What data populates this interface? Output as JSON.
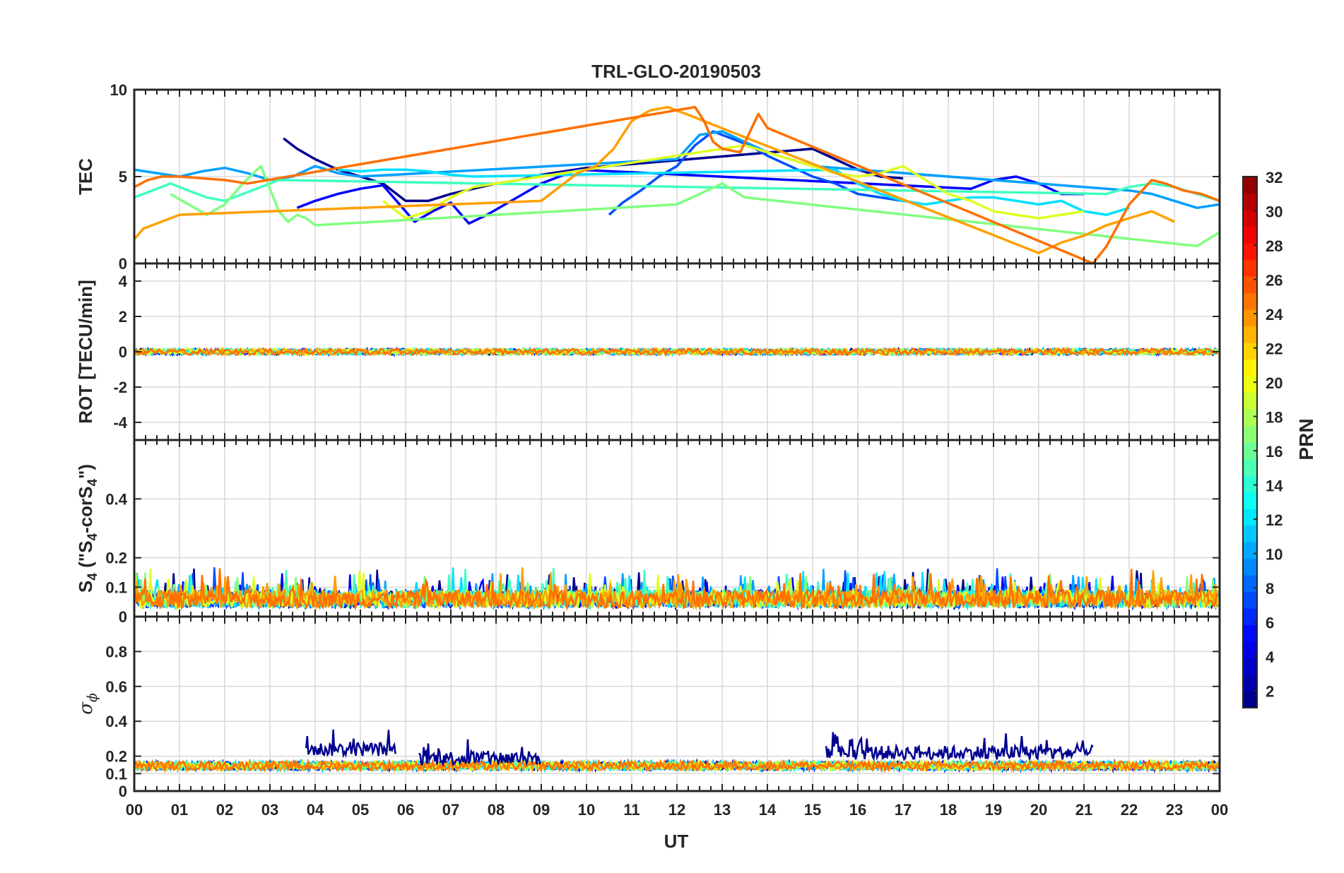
{
  "chart_data": {
    "type": "line",
    "title": "TRL-GLO-20190503",
    "xlabel": "UT",
    "x_ticks": [
      "00",
      "01",
      "02",
      "03",
      "04",
      "05",
      "06",
      "07",
      "08",
      "09",
      "10",
      "11",
      "12",
      "13",
      "14",
      "15",
      "16",
      "17",
      "18",
      "19",
      "20",
      "21",
      "22",
      "23",
      "00"
    ],
    "xlim": [
      0,
      24
    ],
    "grid": true,
    "panels": [
      {
        "id": "tec",
        "ylabel": "TEC",
        "ylim": [
          0,
          10
        ],
        "yticks": [
          0,
          5,
          10
        ],
        "ytick_labels": [
          "0",
          "5",
          "10"
        ],
        "series": [
          {
            "prn": 2,
            "color": "#00008f",
            "x": [
              3.3,
              3.6,
              4.0,
              4.5,
              5.0,
              5.5,
              6.0,
              6.5,
              7.0,
              7.5,
              8.0,
              8.5,
              9.0,
              9.5,
              10.0,
              15.0,
              15.5,
              16.0,
              16.5,
              17.0
            ],
            "y": [
              7.2,
              6.6,
              6.0,
              5.4,
              5.0,
              4.6,
              3.6,
              3.6,
              4.0,
              4.3,
              4.6,
              4.8,
              5.1,
              5.3,
              5.5,
              6.6,
              6.0,
              5.4,
              5.0,
              4.9
            ]
          },
          {
            "prn": 4,
            "color": "#0000ff",
            "x": [
              3.6,
              4.0,
              4.5,
              5.0,
              5.5,
              6.2,
              6.6,
              7.0,
              7.4,
              7.8,
              8.2,
              8.6,
              9.0,
              9.4,
              9.8,
              18.5,
              19.0,
              19.5,
              20.0,
              20.5,
              21.0
            ],
            "y": [
              3.2,
              3.6,
              4.0,
              4.3,
              4.5,
              2.4,
              3.0,
              3.5,
              2.3,
              2.8,
              3.4,
              4.0,
              4.6,
              5.0,
              5.4,
              4.3,
              4.8,
              5.0,
              4.6,
              4.0,
              4.0
            ]
          },
          {
            "prn": 7,
            "color": "#0050ff",
            "x": [
              10.5,
              10.8,
              11.2,
              11.6,
              12.0,
              12.4,
              12.8,
              13.2,
              13.6,
              14.0,
              14.5,
              15.0,
              15.5,
              16.0,
              16.5,
              17.0
            ],
            "y": [
              2.8,
              3.5,
              4.2,
              5.0,
              5.6,
              6.8,
              7.6,
              7.2,
              6.8,
              6.2,
              5.6,
              5.0,
              4.6,
              4.0,
              3.8,
              3.6
            ]
          },
          {
            "prn": 10,
            "color": "#00a0ff",
            "x": [
              0.0,
              0.5,
              1.0,
              1.5,
              2.0,
              2.5,
              3.0,
              3.5,
              4.0,
              4.5,
              5.0,
              12.0,
              12.5,
              13.0,
              13.5,
              14.0,
              14.5,
              15.0,
              22.0,
              22.5,
              23.0,
              23.5,
              24.0
            ],
            "y": [
              5.4,
              5.2,
              5.0,
              5.3,
              5.5,
              5.2,
              4.8,
              5.0,
              5.6,
              5.2,
              5.0,
              6.0,
              7.4,
              7.6,
              7.0,
              6.4,
              6.0,
              5.6,
              4.2,
              4.0,
              3.6,
              3.2,
              3.4
            ]
          },
          {
            "prn": 13,
            "color": "#00e0ff",
            "x": [
              4.5,
              5.0,
              5.5,
              6.0,
              6.5,
              7.0,
              7.5,
              15.5,
              16.0,
              16.5,
              17.0,
              17.5,
              18.0,
              18.5,
              19.0,
              19.5,
              20.0,
              20.5,
              21.0,
              21.5,
              22.0
            ],
            "y": [
              5.4,
              5.3,
              5.4,
              5.4,
              5.3,
              5.1,
              5.0,
              5.4,
              4.6,
              4.0,
              3.6,
              3.4,
              3.6,
              3.8,
              3.8,
              3.6,
              3.4,
              3.6,
              3.0,
              2.8,
              3.2
            ]
          },
          {
            "prn": 15,
            "color": "#40ffbf",
            "x": [
              0.0,
              0.4,
              0.8,
              1.2,
              1.6,
              2.0,
              2.4,
              2.8,
              3.2,
              21.5,
              22.0,
              22.5,
              23.0,
              23.5,
              24.0
            ],
            "y": [
              3.8,
              4.2,
              4.6,
              4.2,
              3.8,
              3.6,
              4.0,
              4.4,
              4.8,
              4.0,
              4.4,
              4.6,
              4.4,
              4.0,
              3.6
            ]
          },
          {
            "prn": 17,
            "color": "#80ff80",
            "x": [
              0.8,
              1.2,
              1.6,
              2.0,
              2.4,
              2.8,
              3.2,
              3.4,
              3.6,
              3.8,
              4.0,
              12.0,
              12.5,
              13.0,
              13.5,
              23.5,
              24.0
            ],
            "y": [
              4.0,
              3.4,
              2.8,
              3.4,
              4.6,
              5.6,
              3.0,
              2.4,
              2.8,
              2.6,
              2.2,
              3.4,
              4.0,
              4.6,
              3.8,
              1.0,
              1.8
            ]
          },
          {
            "prn": 19,
            "color": "#dfff20",
            "x": [
              5.5,
              6.0,
              6.5,
              7.0,
              7.5,
              8.0,
              8.5,
              9.0,
              9.5,
              10.0,
              13.5,
              14.0,
              14.5,
              15.0,
              15.5,
              16.0,
              16.5,
              17.0,
              18.0,
              18.5,
              19.0,
              19.5,
              20.0,
              20.5,
              21.0
            ],
            "y": [
              3.6,
              2.6,
              3.0,
              3.8,
              4.4,
              4.6,
              4.8,
              5.0,
              5.2,
              5.4,
              6.8,
              6.4,
              6.0,
              5.6,
              5.2,
              5.0,
              5.2,
              5.6,
              4.0,
              3.6,
              3.0,
              2.8,
              2.6,
              2.8,
              3.0
            ]
          },
          {
            "prn": 22,
            "color": "#ffa000",
            "x": [
              0.0,
              0.2,
              0.6,
              1.0,
              9.0,
              9.4,
              9.8,
              10.2,
              10.6,
              11.0,
              11.4,
              11.8,
              12.2,
              20.0,
              20.5,
              21.0,
              21.5,
              22.0,
              22.5,
              23.0
            ],
            "y": [
              1.4,
              2.0,
              2.4,
              2.8,
              3.6,
              4.4,
              5.2,
              5.6,
              6.6,
              8.2,
              8.8,
              9.0,
              8.6,
              0.6,
              1.2,
              1.6,
              2.2,
              2.6,
              3.0,
              2.4
            ]
          },
          {
            "prn": 24,
            "color": "#ff7000",
            "x": [
              0.0,
              0.3,
              0.6,
              1.0,
              1.5,
              2.0,
              2.5,
              12.4,
              12.6,
              12.8,
              13.0,
              13.4,
              13.8,
              14.0,
              21.2,
              21.5,
              22.0,
              22.5,
              22.8,
              23.2,
              23.6,
              24.0
            ],
            "y": [
              4.4,
              4.8,
              5.0,
              5.0,
              4.9,
              4.8,
              4.6,
              9.0,
              8.2,
              7.0,
              6.6,
              6.4,
              8.6,
              7.8,
              0.0,
              1.0,
              3.4,
              4.8,
              4.6,
              4.2,
              4.0,
              3.6
            ]
          }
        ]
      },
      {
        "id": "rot",
        "ylabel": "ROT [TECU/min]",
        "ylim": [
          -5,
          5
        ],
        "yticks": [
          -4,
          -2,
          0,
          2,
          4
        ],
        "ytick_labels": [
          "-4",
          "-2",
          "0",
          "2",
          "4"
        ],
        "description_of_series": "all PRNs near zero, amplitude about ±0.2 TECU/min"
      },
      {
        "id": "s4",
        "ylabel_main": "S",
        "ylabel_sub1": "4",
        "ylabel_mid": " (\"S",
        "ylabel_sub2": "4",
        "ylabel_mid2": "-corS",
        "ylabel_sub3": "4",
        "ylabel_end": "\")",
        "ylim": [
          0,
          0.6
        ],
        "yticks": [
          0,
          0.1,
          0.2,
          0.4
        ],
        "ytick_labels": [
          "0",
          "0.1",
          "0.2",
          "0.4"
        ]
      },
      {
        "id": "sigma",
        "ylabel_main": "σ",
        "ylabel_sub": "ϕ",
        "ylim": [
          0,
          1
        ],
        "yticks": [
          0,
          0.1,
          0.2,
          0.4,
          0.6,
          0.8
        ],
        "ytick_labels": [
          "0",
          "0.1",
          "0.2",
          "0.4",
          "0.6",
          "0.8"
        ],
        "bursts": [
          {
            "x_start": 3.8,
            "x_end": 5.8,
            "level": 0.25,
            "color": "#00008f"
          },
          {
            "x_start": 6.3,
            "x_end": 9.0,
            "level": 0.2,
            "color": "#00008f"
          },
          {
            "x_start": 15.3,
            "x_end": 21.2,
            "level": 0.23,
            "color": "#00008f"
          }
        ]
      }
    ],
    "colorbar": {
      "label": "PRN",
      "range": [
        1,
        32
      ],
      "ticks": [
        "2",
        "4",
        "6",
        "8",
        "10",
        "12",
        "14",
        "16",
        "18",
        "20",
        "22",
        "24",
        "26",
        "28",
        "30",
        "32"
      ],
      "colormap": "jet"
    }
  }
}
